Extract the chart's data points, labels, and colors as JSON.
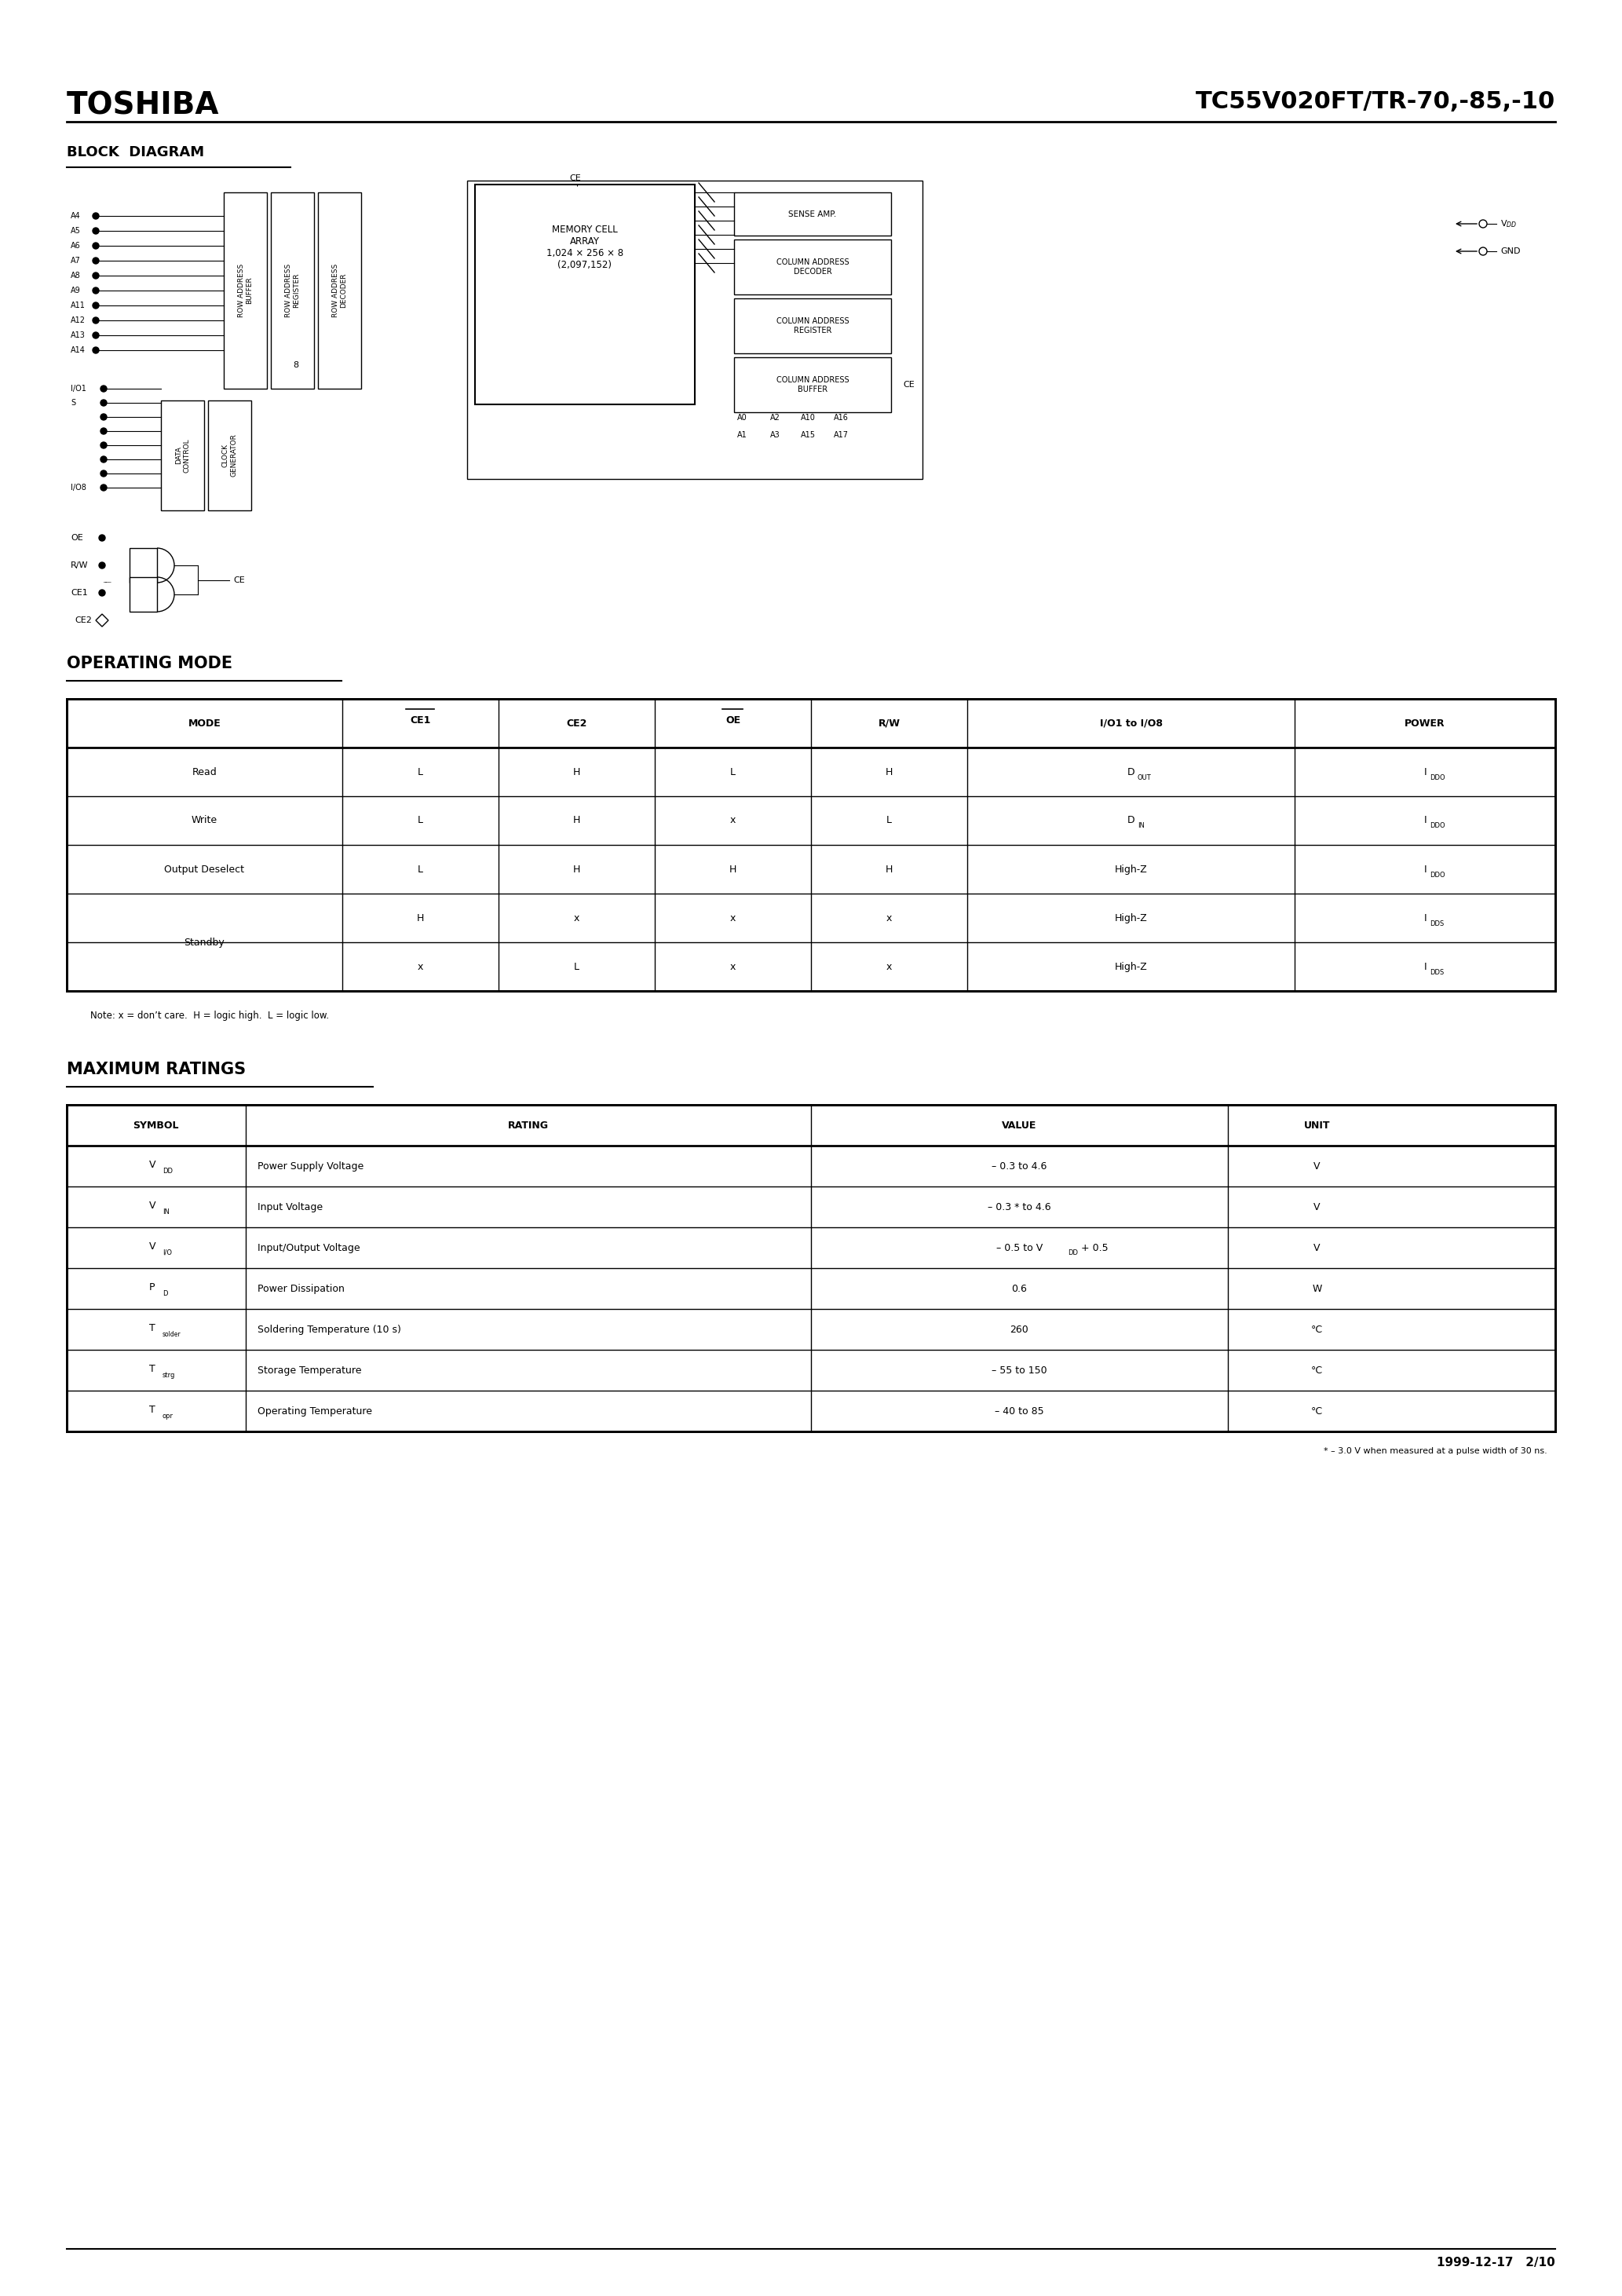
{
  "page_width": 20.66,
  "page_height": 29.24,
  "bg_color": "#ffffff",
  "header_company": "TOSHIBA",
  "header_part": "TC55V020FT/TR-70,-85,-10",
  "section1_title": "BLOCK  DIAGRAM",
  "section2_title": "OPERATING MODE",
  "section3_title": "MAXIMUM RATINGS",
  "footer_text": "1999-12-17   2/10",
  "op_mode_headers": [
    "MODE",
    "CE1̅",
    "CE2",
    "OE̅",
    "R/W",
    "I/O1 to I/O8",
    "POWER"
  ],
  "op_mode_rows": [
    [
      "Read",
      "L",
      "H",
      "L",
      "H",
      "D_OUT",
      "I_DDO"
    ],
    [
      "Write",
      "L",
      "H",
      "x",
      "L",
      "D_IN",
      "I_DDO"
    ],
    [
      "Output Deselect",
      "L",
      "H",
      "H",
      "H",
      "High-Z",
      "I_DDO"
    ],
    [
      "Standby",
      "H",
      "x",
      "x",
      "x",
      "High-Z",
      "I_DDS"
    ],
    [
      "",
      "x",
      "L",
      "x",
      "x",
      "High-Z",
      "I_DDS"
    ]
  ],
  "op_note": "Note: x = don’t care.  H = logic high.  L = logic low.",
  "max_ratings_headers": [
    "SYMBOL",
    "RATING",
    "VALUE",
    "UNIT"
  ],
  "max_ratings_rows": [
    [
      "V_DD",
      "Power Supply Voltage",
      "– 0.3 to 4.6",
      "V"
    ],
    [
      "V_IN",
      "Input Voltage",
      "– 0.3 * to 4.6",
      "V"
    ],
    [
      "V_I/O",
      "Input/Output Voltage",
      "– 0.5 to V_DD + 0.5",
      "V"
    ],
    [
      "P_D",
      "Power Dissipation",
      "0.6",
      "W"
    ],
    [
      "T_solder",
      "Soldering Temperature (10 s)",
      "260",
      "°C"
    ],
    [
      "T_strg",
      "Storage Temperature",
      "– 55 to 150",
      "°C"
    ],
    [
      "T_opr",
      "Operating Temperature",
      "– 40 to 85",
      "°C"
    ]
  ],
  "max_note": "* – 3.0 V when measured at a pulse width of 30 ns."
}
